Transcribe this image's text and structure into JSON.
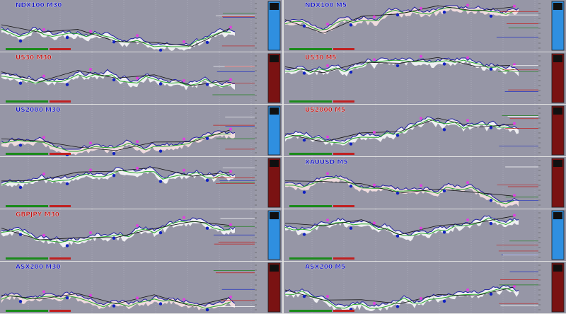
{
  "panes": [
    {
      "title": "NDX100 M30",
      "title_color": "#1010c0",
      "panel_color": "#2f8fe0"
    },
    {
      "title": "NDX100 M5",
      "title_color": "#1010c0",
      "panel_color": "#2f8fe0"
    },
    {
      "title": "US30 M30",
      "title_color": "#c01010",
      "panel_color": "#7a1212"
    },
    {
      "title": "US30 M5",
      "title_color": "#c01010",
      "panel_color": "#7a1212"
    },
    {
      "title": "US2000 M30",
      "title_color": "#1010c0",
      "panel_color": "#2f8fe0"
    },
    {
      "title": "US2000 M5",
      "title_color": "#c01010",
      "panel_color": "#7a1212"
    },
    {
      "title_color": "#1010c0",
      "panel_color": "#7a1212"
    },
    {
      "title": "XAUUSD M5",
      "title_color": "#1010c0",
      "panel_color": "#7a1212"
    },
    {
      "title": "GBPJPY M30",
      "title_color": "#c01010",
      "panel_color": "#2f8fe0"
    },
    {
      "title_color": "#1010c0",
      "panel_color": "#2f8fe0"
    },
    {
      "title": "ASX200 M30",
      "title_color": "#1010c0",
      "panel_color": "#7a1212"
    },
    {
      "title": "ASX200 M5",
      "title_color": "#1010c0",
      "panel_color": "#7a1212"
    }
  ]
}
